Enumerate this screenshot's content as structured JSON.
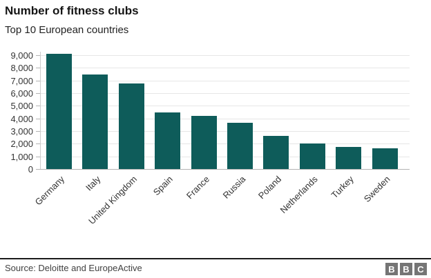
{
  "header": {
    "title": "Number of fitness clubs",
    "subtitle": "Top 10 European countries"
  },
  "chart_data": {
    "type": "bar",
    "title": "Number of fitness clubs",
    "subtitle": "Top 10 European countries",
    "categories": [
      "Germany",
      "Italy",
      "United Kingdom",
      "Spain",
      "France",
      "Russia",
      "Poland",
      "Netherlands",
      "Turkey",
      "Sweden"
    ],
    "values": [
      9100,
      7500,
      6750,
      4500,
      4200,
      3650,
      2600,
      2000,
      1750,
      1650
    ],
    "xlabel": "",
    "ylabel": "",
    "ylim": [
      0,
      9000
    ],
    "yticks": [
      0,
      1000,
      2000,
      3000,
      4000,
      5000,
      6000,
      7000,
      8000,
      9000
    ],
    "ytick_labels": [
      "0",
      "1,000",
      "2,000",
      "3,000",
      "4,000",
      "5,000",
      "6,000",
      "7,000",
      "8,000",
      "9,000"
    ],
    "grid": true,
    "legend": false
  },
  "footer": {
    "source": "Source: Deloitte and EuropeActive",
    "logo_letters": [
      "B",
      "B",
      "C"
    ]
  },
  "colors": {
    "bar": "#0e5c5a",
    "grid": "#e6e6e6",
    "axis": "#b3b3b3",
    "axis_left": "#cccccc",
    "separator": "#1a1a1a",
    "logo_bg": "#757575"
  }
}
